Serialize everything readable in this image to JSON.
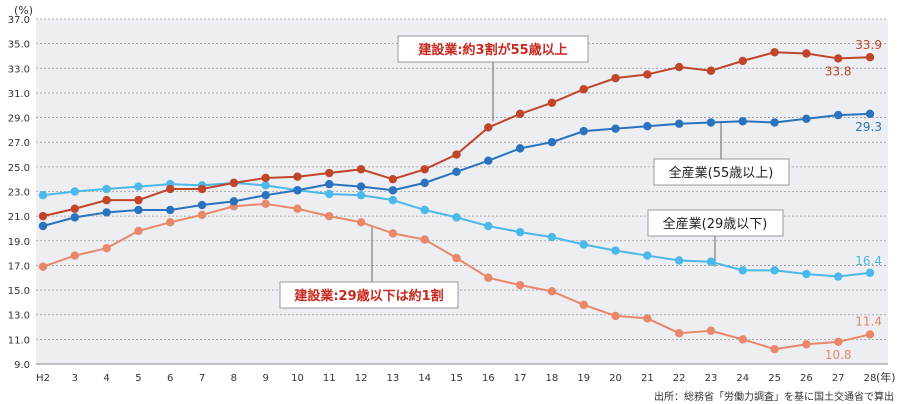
{
  "chart_data": {
    "type": "line",
    "ylabel": "(%)",
    "xlabel": "(年)",
    "ylim": [
      9.0,
      37.0
    ],
    "yticks": [
      "9.0",
      "11.0",
      "13.0",
      "15.0",
      "17.0",
      "19.0",
      "21.0",
      "23.0",
      "25.0",
      "27.0",
      "29.0",
      "31.0",
      "33.0",
      "35.0",
      "37.0"
    ],
    "categories": [
      "H2",
      "3",
      "4",
      "5",
      "6",
      "7",
      "8",
      "9",
      "10",
      "11",
      "12",
      "13",
      "14",
      "15",
      "16",
      "17",
      "18",
      "19",
      "20",
      "21",
      "22",
      "23",
      "24",
      "25",
      "26",
      "27",
      "28"
    ],
    "grid": true,
    "series": [
      {
        "name": "建設業:約3割が55歳以上",
        "color": "#c0452a",
        "values": [
          21.0,
          21.6,
          22.3,
          22.3,
          23.2,
          23.2,
          23.7,
          24.1,
          24.2,
          24.5,
          24.8,
          24.0,
          24.8,
          26.0,
          28.2,
          29.3,
          30.2,
          31.3,
          32.2,
          32.5,
          33.1,
          32.8,
          33.6,
          34.3,
          34.2,
          33.8,
          33.9
        ]
      },
      {
        "name": "全産業(55歳以上)",
        "color": "#2a72bc",
        "values": [
          20.2,
          20.9,
          21.3,
          21.5,
          21.5,
          21.9,
          22.2,
          22.7,
          23.1,
          23.6,
          23.4,
          23.1,
          23.7,
          24.6,
          25.5,
          26.5,
          27.0,
          27.9,
          28.1,
          28.3,
          28.5,
          28.6,
          28.7,
          28.6,
          28.9,
          29.2,
          29.3
        ]
      },
      {
        "name": "全産業(29歳以下)",
        "color": "#4cb8e8",
        "values": [
          22.7,
          23.0,
          23.2,
          23.4,
          23.6,
          23.5,
          23.7,
          23.5,
          23.1,
          22.8,
          22.7,
          22.3,
          21.5,
          20.9,
          20.2,
          19.7,
          19.3,
          18.7,
          18.2,
          17.8,
          17.4,
          17.3,
          16.6,
          16.6,
          16.3,
          16.1,
          16.4
        ]
      },
      {
        "name": "建設業:29歳以下は約1割",
        "color": "#e8876a",
        "values": [
          16.9,
          17.8,
          18.4,
          19.8,
          20.5,
          21.1,
          21.8,
          22.0,
          21.6,
          21.0,
          20.5,
          19.6,
          19.1,
          17.6,
          16.0,
          15.4,
          14.9,
          13.8,
          12.9,
          12.7,
          11.5,
          11.7,
          11.0,
          10.2,
          10.6,
          10.8,
          11.4
        ]
      }
    ],
    "data_labels": [
      {
        "series": 0,
        "index": 26,
        "text": "33.9"
      },
      {
        "series": 0,
        "index": 25,
        "text": "33.8"
      },
      {
        "series": 1,
        "index": 26,
        "text": "29.3"
      },
      {
        "series": 2,
        "index": 26,
        "text": "16.4"
      },
      {
        "series": 3,
        "index": 26,
        "text": "11.4"
      },
      {
        "series": 3,
        "index": 25,
        "text": "10.8"
      }
    ],
    "source": "出所：総務省「労働力調査」を基に国土交通省で算出"
  }
}
